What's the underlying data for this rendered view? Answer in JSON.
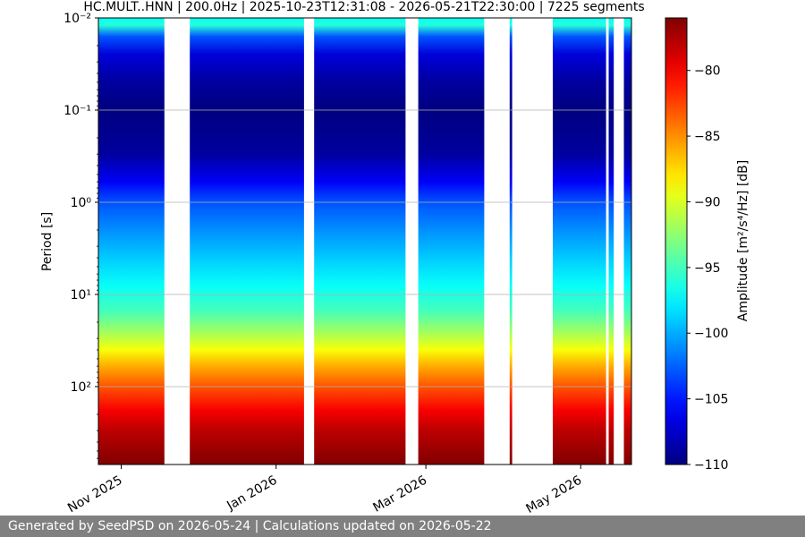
{
  "chart_data": {
    "type": "heatmap",
    "title": "HC.MULT..HNN | 200.0Hz | 2025-10-23T12:31:08 - 2026-05-21T22:30:00 | 7225 segments",
    "ylabel": "Period [s]",
    "colorbar_label": "Amplitude [m²/s⁴/Hz] [dB]",
    "y_scale": "log",
    "y_inverted": true,
    "y_range": [
      0.01,
      700
    ],
    "y_ticks": [
      {
        "value": 0.01,
        "label": "10⁻²"
      },
      {
        "value": 0.1,
        "label": "10⁻¹"
      },
      {
        "value": 1,
        "label": "10⁰"
      },
      {
        "value": 10,
        "label": "10¹"
      },
      {
        "value": 100,
        "label": "10²"
      }
    ],
    "x_range": [
      "2025-10-23",
      "2026-05-21"
    ],
    "x_ticks": [
      {
        "date": "2025-11-01",
        "label": "Nov 2025"
      },
      {
        "date": "2026-01-01",
        "label": "Jan 2026"
      },
      {
        "date": "2026-03-01",
        "label": "Mar 2026"
      },
      {
        "date": "2026-05-01",
        "label": "May 2026"
      }
    ],
    "color_range": [
      -110,
      -76
    ],
    "colormap": "jet",
    "colorbar_ticks": [
      -80,
      -85,
      -90,
      -95,
      -100,
      -105,
      -110
    ],
    "grid": true,
    "data_periods": [
      {
        "start": "2025-10-23",
        "end": "2025-11-18"
      },
      {
        "start": "2025-11-28",
        "end": "2026-01-12"
      },
      {
        "start": "2026-01-16",
        "end": "2026-02-21"
      },
      {
        "start": "2026-02-26",
        "end": "2026-03-24"
      },
      {
        "start": "2026-04-03",
        "end": "2026-04-04"
      },
      {
        "start": "2026-04-20",
        "end": "2026-05-11"
      },
      {
        "start": "2026-05-12",
        "end": "2026-05-14"
      },
      {
        "start": "2026-05-18",
        "end": "2026-05-21"
      }
    ],
    "amplitude_profile": [
      {
        "period": 0.01,
        "db": -97
      },
      {
        "period": 0.012,
        "db": -96
      },
      {
        "period": 0.016,
        "db": -103
      },
      {
        "period": 0.025,
        "db": -107
      },
      {
        "period": 0.05,
        "db": -109
      },
      {
        "period": 0.1,
        "db": -110
      },
      {
        "period": 0.3,
        "db": -109
      },
      {
        "period": 0.6,
        "db": -106
      },
      {
        "period": 1,
        "db": -103
      },
      {
        "period": 2,
        "db": -101
      },
      {
        "period": 4,
        "db": -99
      },
      {
        "period": 8,
        "db": -97
      },
      {
        "period": 15,
        "db": -95
      },
      {
        "period": 25,
        "db": -92
      },
      {
        "period": 40,
        "db": -89
      },
      {
        "period": 60,
        "db": -86
      },
      {
        "period": 100,
        "db": -83
      },
      {
        "period": 180,
        "db": -80
      },
      {
        "period": 300,
        "db": -78
      },
      {
        "period": 700,
        "db": -76
      }
    ]
  },
  "footer": {
    "text": "Generated by SeedPSD on 2026-05-24 | Calculations updated on 2026-05-22"
  }
}
